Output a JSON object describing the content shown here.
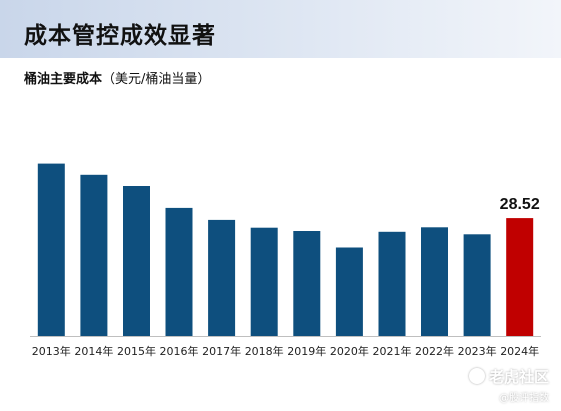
{
  "slide": {
    "title": "成本管控成效显著",
    "subtitle_bold": "桶油主要成本",
    "subtitle_unit": "（美元/桶油当量）"
  },
  "chart_data": {
    "type": "bar",
    "categories": [
      "2013年",
      "2014年",
      "2015年",
      "2016年",
      "2017年",
      "2018年",
      "2019年",
      "2020年",
      "2021年",
      "2022年",
      "2023年",
      "2024年"
    ],
    "values": [
      41.7,
      39.0,
      36.3,
      31.0,
      28.1,
      26.2,
      25.4,
      21.4,
      25.2,
      26.3,
      24.6,
      28.52
    ],
    "ylim": [
      0,
      45
    ],
    "title": "",
    "xlabel": "",
    "ylabel": "",
    "grid": false,
    "colors": {
      "default": "#0e4f7e",
      "highlight": "#c00000"
    },
    "highlight_index": 11,
    "data_labels": [
      {
        "index": 11,
        "text": "28.52"
      }
    ]
  },
  "watermark": {
    "main": "老虎社区",
    "sub": "@股评指数"
  }
}
